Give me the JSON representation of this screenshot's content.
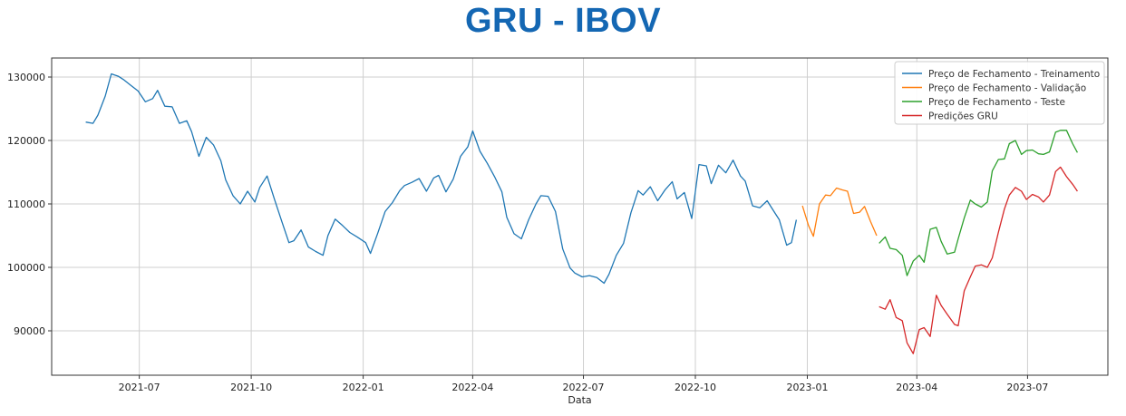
{
  "title": "GRU - IBOV",
  "chart_data": {
    "type": "line",
    "title": "GRU - IBOV",
    "xlabel": "Data",
    "ylabel": "",
    "grid": true,
    "legend_position": "top-right",
    "xlim": [
      "2021-04-20",
      "2023-09-05"
    ],
    "ylim": [
      83000,
      133000
    ],
    "x_ticks": [
      "2021-07-01",
      "2021-10-01",
      "2022-01-01",
      "2022-04-01",
      "2022-07-01",
      "2022-10-01",
      "2023-01-01",
      "2023-04-01",
      "2023-07-01"
    ],
    "x_tick_labels": [
      "2021-07",
      "2021-10",
      "2022-01",
      "2022-04",
      "2022-07",
      "2022-10",
      "2023-01",
      "2023-04",
      "2023-07"
    ],
    "y_ticks": [
      90000,
      100000,
      110000,
      120000,
      130000
    ],
    "y_tick_labels": [
      "90000",
      "100000",
      "110000",
      "120000",
      "130000"
    ],
    "series": [
      {
        "name": "Preço de Fechamento - Treinamento",
        "color": "#1f77b4",
        "points": [
          [
            "2021-05-18",
            122900
          ],
          [
            "2021-05-24",
            122700
          ],
          [
            "2021-05-28",
            124000
          ],
          [
            "2021-06-03",
            127000
          ],
          [
            "2021-06-08",
            130500
          ],
          [
            "2021-06-14",
            130100
          ],
          [
            "2021-06-18",
            129600
          ],
          [
            "2021-06-24",
            128700
          ],
          [
            "2021-06-30",
            127800
          ],
          [
            "2021-07-06",
            126100
          ],
          [
            "2021-07-12",
            126600
          ],
          [
            "2021-07-16",
            127900
          ],
          [
            "2021-07-22",
            125400
          ],
          [
            "2021-07-28",
            125300
          ],
          [
            "2021-08-03",
            122700
          ],
          [
            "2021-08-09",
            123100
          ],
          [
            "2021-08-13",
            121400
          ],
          [
            "2021-08-19",
            117500
          ],
          [
            "2021-08-25",
            120500
          ],
          [
            "2021-08-31",
            119300
          ],
          [
            "2021-09-06",
            116800
          ],
          [
            "2021-09-10",
            113800
          ],
          [
            "2021-09-16",
            111300
          ],
          [
            "2021-09-22",
            110000
          ],
          [
            "2021-09-28",
            112000
          ],
          [
            "2021-10-04",
            110300
          ],
          [
            "2021-10-08",
            112600
          ],
          [
            "2021-10-14",
            114400
          ],
          [
            "2021-10-20",
            110800
          ],
          [
            "2021-10-26",
            107300
          ],
          [
            "2021-11-01",
            103900
          ],
          [
            "2021-11-05",
            104200
          ],
          [
            "2021-11-11",
            105900
          ],
          [
            "2021-11-17",
            103200
          ],
          [
            "2021-11-23",
            102500
          ],
          [
            "2021-11-29",
            101900
          ],
          [
            "2021-12-03",
            105000
          ],
          [
            "2021-12-09",
            107600
          ],
          [
            "2021-12-15",
            106600
          ],
          [
            "2021-12-21",
            105500
          ],
          [
            "2021-12-27",
            104800
          ],
          [
            "2022-01-03",
            103900
          ],
          [
            "2022-01-07",
            102200
          ],
          [
            "2022-01-13",
            105400
          ],
          [
            "2022-01-19",
            108800
          ],
          [
            "2022-01-25",
            110200
          ],
          [
            "2022-01-31",
            112100
          ],
          [
            "2022-02-04",
            112900
          ],
          [
            "2022-02-10",
            113400
          ],
          [
            "2022-02-16",
            114000
          ],
          [
            "2022-02-22",
            112000
          ],
          [
            "2022-02-28",
            114100
          ],
          [
            "2022-03-04",
            114500
          ],
          [
            "2022-03-10",
            111900
          ],
          [
            "2022-03-16",
            113900
          ],
          [
            "2022-03-22",
            117500
          ],
          [
            "2022-03-28",
            119000
          ],
          [
            "2022-04-01",
            121500
          ],
          [
            "2022-04-07",
            118300
          ],
          [
            "2022-04-13",
            116400
          ],
          [
            "2022-04-19",
            114300
          ],
          [
            "2022-04-25",
            111900
          ],
          [
            "2022-04-29",
            107900
          ],
          [
            "2022-05-05",
            105300
          ],
          [
            "2022-05-11",
            104500
          ],
          [
            "2022-05-17",
            107500
          ],
          [
            "2022-05-23",
            110000
          ],
          [
            "2022-05-27",
            111300
          ],
          [
            "2022-06-02",
            111200
          ],
          [
            "2022-06-08",
            108800
          ],
          [
            "2022-06-14",
            102900
          ],
          [
            "2022-06-20",
            99900
          ],
          [
            "2022-06-24",
            99100
          ],
          [
            "2022-06-30",
            98500
          ],
          [
            "2022-07-06",
            98700
          ],
          [
            "2022-07-12",
            98400
          ],
          [
            "2022-07-18",
            97500
          ],
          [
            "2022-07-22",
            98900
          ],
          [
            "2022-07-28",
            101900
          ],
          [
            "2022-08-03",
            103800
          ],
          [
            "2022-08-09",
            108600
          ],
          [
            "2022-08-15",
            112100
          ],
          [
            "2022-08-19",
            111400
          ],
          [
            "2022-08-25",
            112700
          ],
          [
            "2022-08-31",
            110500
          ],
          [
            "2022-09-06",
            112200
          ],
          [
            "2022-09-12",
            113500
          ],
          [
            "2022-09-16",
            110800
          ],
          [
            "2022-09-22",
            111800
          ],
          [
            "2022-09-28",
            107700
          ],
          [
            "2022-10-04",
            116200
          ],
          [
            "2022-10-10",
            116000
          ],
          [
            "2022-10-14",
            113200
          ],
          [
            "2022-10-20",
            116100
          ],
          [
            "2022-10-26",
            114900
          ],
          [
            "2022-11-01",
            116900
          ],
          [
            "2022-11-07",
            114400
          ],
          [
            "2022-11-11",
            113600
          ],
          [
            "2022-11-17",
            109700
          ],
          [
            "2022-11-23",
            109400
          ],
          [
            "2022-11-29",
            110500
          ],
          [
            "2022-12-05",
            108700
          ],
          [
            "2022-12-09",
            107500
          ],
          [
            "2022-12-15",
            103500
          ],
          [
            "2022-12-19",
            103900
          ],
          [
            "2022-12-23",
            107500
          ]
        ]
      },
      {
        "name": "Preço de Fechamento - Validação",
        "color": "#ff7f0e",
        "points": [
          [
            "2022-12-28",
            109700
          ],
          [
            "2023-01-02",
            106600
          ],
          [
            "2023-01-06",
            104900
          ],
          [
            "2023-01-11",
            110000
          ],
          [
            "2023-01-16",
            111400
          ],
          [
            "2023-01-20",
            111300
          ],
          [
            "2023-01-25",
            112500
          ],
          [
            "2023-01-30",
            112200
          ],
          [
            "2023-02-03",
            112000
          ],
          [
            "2023-02-08",
            108500
          ],
          [
            "2023-02-13",
            108700
          ],
          [
            "2023-02-17",
            109600
          ],
          [
            "2023-02-22",
            107200
          ],
          [
            "2023-02-27",
            105000
          ]
        ]
      },
      {
        "name": "Preço de Fechamento - Teste",
        "color": "#2ca02c",
        "points": [
          [
            "2023-03-01",
            103800
          ],
          [
            "2023-03-06",
            104800
          ],
          [
            "2023-03-10",
            103000
          ],
          [
            "2023-03-15",
            102800
          ],
          [
            "2023-03-20",
            101900
          ],
          [
            "2023-03-24",
            98700
          ],
          [
            "2023-03-29",
            101000
          ],
          [
            "2023-04-03",
            101900
          ],
          [
            "2023-04-07",
            100800
          ],
          [
            "2023-04-12",
            106000
          ],
          [
            "2023-04-17",
            106300
          ],
          [
            "2023-04-21",
            104100
          ],
          [
            "2023-04-26",
            102100
          ],
          [
            "2023-05-02",
            102400
          ],
          [
            "2023-05-05",
            104500
          ],
          [
            "2023-05-10",
            107800
          ],
          [
            "2023-05-15",
            110600
          ],
          [
            "2023-05-19",
            110000
          ],
          [
            "2023-05-24",
            109500
          ],
          [
            "2023-05-29",
            110300
          ],
          [
            "2023-06-02",
            115200
          ],
          [
            "2023-06-07",
            117000
          ],
          [
            "2023-06-12",
            117100
          ],
          [
            "2023-06-16",
            119500
          ],
          [
            "2023-06-21",
            120000
          ],
          [
            "2023-06-26",
            117800
          ],
          [
            "2023-06-30",
            118400
          ],
          [
            "2023-07-05",
            118500
          ],
          [
            "2023-07-10",
            117900
          ],
          [
            "2023-07-14",
            117800
          ],
          [
            "2023-07-19",
            118200
          ],
          [
            "2023-07-24",
            121300
          ],
          [
            "2023-07-28",
            121600
          ],
          [
            "2023-08-02",
            121600
          ],
          [
            "2023-08-07",
            119500
          ],
          [
            "2023-08-11",
            118100
          ]
        ]
      },
      {
        "name": "Predições GRU",
        "color": "#d62728",
        "points": [
          [
            "2023-03-01",
            93800
          ],
          [
            "2023-03-06",
            93400
          ],
          [
            "2023-03-10",
            94900
          ],
          [
            "2023-03-15",
            92100
          ],
          [
            "2023-03-20",
            91600
          ],
          [
            "2023-03-24",
            88100
          ],
          [
            "2023-03-29",
            86400
          ],
          [
            "2023-04-03",
            90200
          ],
          [
            "2023-04-07",
            90500
          ],
          [
            "2023-04-12",
            89100
          ],
          [
            "2023-04-17",
            95600
          ],
          [
            "2023-04-21",
            94000
          ],
          [
            "2023-04-26",
            92600
          ],
          [
            "2023-05-02",
            91000
          ],
          [
            "2023-05-05",
            90800
          ],
          [
            "2023-05-10",
            96300
          ],
          [
            "2023-05-15",
            98500
          ],
          [
            "2023-05-19",
            100200
          ],
          [
            "2023-05-24",
            100400
          ],
          [
            "2023-05-29",
            100000
          ],
          [
            "2023-06-02",
            101500
          ],
          [
            "2023-06-07",
            105500
          ],
          [
            "2023-06-12",
            109200
          ],
          [
            "2023-06-16",
            111400
          ],
          [
            "2023-06-21",
            112600
          ],
          [
            "2023-06-26",
            112000
          ],
          [
            "2023-06-30",
            110700
          ],
          [
            "2023-07-05",
            111500
          ],
          [
            "2023-07-10",
            111100
          ],
          [
            "2023-07-14",
            110300
          ],
          [
            "2023-07-19",
            111400
          ],
          [
            "2023-07-24",
            115100
          ],
          [
            "2023-07-28",
            115800
          ],
          [
            "2023-08-02",
            114300
          ],
          [
            "2023-08-07",
            113100
          ],
          [
            "2023-08-11",
            112000
          ]
        ]
      }
    ]
  }
}
